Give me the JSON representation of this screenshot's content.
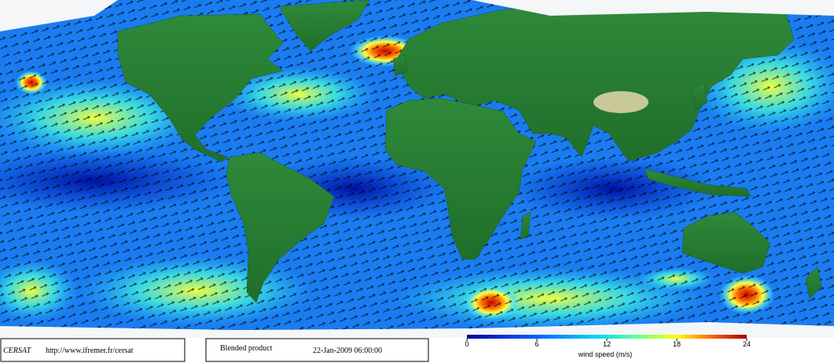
{
  "footer": {
    "logo": "CERSAT",
    "url": "http://www.ifremer.fr/cersat",
    "product": "Blended product",
    "timestamp": "22-Jan-2009 06:00:00"
  },
  "colorbar": {
    "label": "wind speed (m/s)",
    "lim": [
      0,
      24
    ],
    "ticks": [
      0,
      6,
      12,
      18,
      24
    ]
  }
}
